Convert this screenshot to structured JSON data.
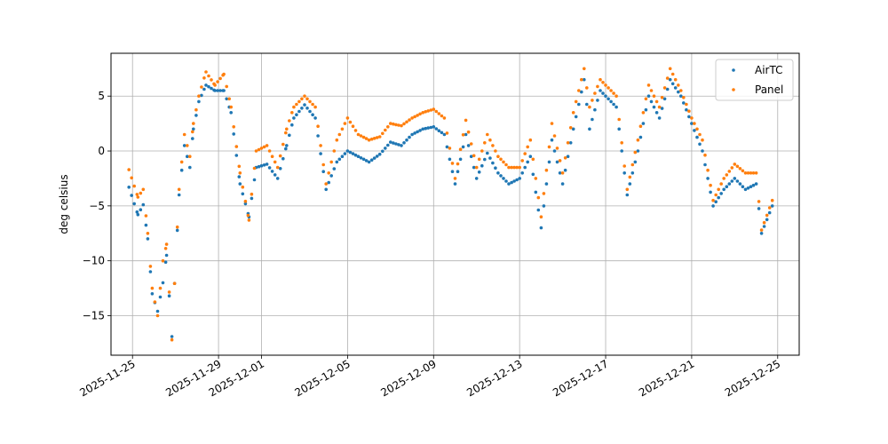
{
  "chart_data": {
    "type": "scatter",
    "title": "",
    "xlabel": "",
    "ylabel": "deg celsius",
    "x_type": "date",
    "xlim": [
      "2025-11-24T00:00",
      "2025-12-26T00:00"
    ],
    "ylim": [
      -18.6,
      8.9
    ],
    "x_ticks": [
      "2025-11-25",
      "2025-11-29",
      "2025-12-01",
      "2025-12-05",
      "2025-12-09",
      "2025-12-13",
      "2025-12-17",
      "2025-12-21",
      "2025-12-25"
    ],
    "y_ticks": [
      -15,
      -10,
      -5,
      0,
      5
    ],
    "grid": true,
    "legend_position": "top-right",
    "series": [
      {
        "name": "AirTC",
        "color": "#1f77b4",
        "points": [
          [
            "2025-11-24T20:00",
            -3.3
          ],
          [
            "2025-11-25T06:00",
            -5.8
          ],
          [
            "2025-11-25T12:00",
            -4.9
          ],
          [
            "2025-11-25T17:00",
            -8.0
          ],
          [
            "2025-11-25T22:00",
            -13.0
          ],
          [
            "2025-11-26T04:00",
            -14.6
          ],
          [
            "2025-11-26T10:00",
            -12.0
          ],
          [
            "2025-11-26T14:00",
            -9.5
          ],
          [
            "2025-11-26T20:00",
            -16.9
          ],
          [
            "2025-11-27T04:00",
            -4.0
          ],
          [
            "2025-11-27T10:00",
            0.5
          ],
          [
            "2025-11-27T16:00",
            -1.5
          ],
          [
            "2025-11-27T20:00",
            2.0
          ],
          [
            "2025-11-28T02:00",
            4.5
          ],
          [
            "2025-11-28T10:00",
            6.0
          ],
          [
            "2025-11-28T20:00",
            5.5
          ],
          [
            "2025-11-29T06:00",
            5.5
          ],
          [
            "2025-11-29T14:00",
            3.5
          ],
          [
            "2025-11-30T00:00",
            -3.0
          ],
          [
            "2025-11-30T10:00",
            -6.0
          ],
          [
            "2025-11-30T18:00",
            -1.5
          ],
          [
            "2025-12-01T06:00",
            -1.2
          ],
          [
            "2025-12-01T18:00",
            -2.5
          ],
          [
            "2025-12-02T04:00",
            0.5
          ],
          [
            "2025-12-02T12:00",
            3.0
          ],
          [
            "2025-12-03T00:00",
            4.2
          ],
          [
            "2025-12-03T12:00",
            3.0
          ],
          [
            "2025-12-04T00:00",
            -3.5
          ],
          [
            "2025-12-04T12:00",
            -1.0
          ],
          [
            "2025-12-05T00:00",
            0.0
          ],
          [
            "2025-12-05T12:00",
            -0.5
          ],
          [
            "2025-12-06T00:00",
            -1.0
          ],
          [
            "2025-12-06T12:00",
            -0.3
          ],
          [
            "2025-12-07T00:00",
            0.8
          ],
          [
            "2025-12-07T12:00",
            0.5
          ],
          [
            "2025-12-08T00:00",
            1.5
          ],
          [
            "2025-12-08T12:00",
            2.0
          ],
          [
            "2025-12-09T00:00",
            2.2
          ],
          [
            "2025-12-09T12:00",
            1.5
          ],
          [
            "2025-12-10T00:00",
            -3.0
          ],
          [
            "2025-12-10T12:00",
            1.5
          ],
          [
            "2025-12-11T00:00",
            -2.5
          ],
          [
            "2025-12-11T12:00",
            -0.2
          ],
          [
            "2025-12-12T00:00",
            -2.0
          ],
          [
            "2025-12-12T12:00",
            -3.0
          ],
          [
            "2025-12-13T00:00",
            -2.5
          ],
          [
            "2025-12-13T12:00",
            -0.5
          ],
          [
            "2025-12-14T00:00",
            -7.0
          ],
          [
            "2025-12-14T12:00",
            1.0
          ],
          [
            "2025-12-15T00:00",
            -3.0
          ],
          [
            "2025-12-15T12:00",
            2.0
          ],
          [
            "2025-12-16T00:00",
            6.5
          ],
          [
            "2025-12-16T06:00",
            2.0
          ],
          [
            "2025-12-16T18:00",
            5.5
          ],
          [
            "2025-12-17T12:00",
            4.0
          ],
          [
            "2025-12-18T00:00",
            -4.0
          ],
          [
            "2025-12-18T12:00",
            0.0
          ],
          [
            "2025-12-19T00:00",
            5.0
          ],
          [
            "2025-12-19T12:00",
            3.0
          ],
          [
            "2025-12-20T00:00",
            6.5
          ],
          [
            "2025-12-20T12:00",
            5.0
          ],
          [
            "2025-12-21T00:00",
            2.5
          ],
          [
            "2025-12-21T12:00",
            0.0
          ],
          [
            "2025-12-22T00:00",
            -5.0
          ],
          [
            "2025-12-22T12:00",
            -3.5
          ],
          [
            "2025-12-23T00:00",
            -2.5
          ],
          [
            "2025-12-23T12:00",
            -3.5
          ],
          [
            "2025-12-24T00:00",
            -3.0
          ],
          [
            "2025-12-24T06:00",
            -7.5
          ],
          [
            "2025-12-24T18:00",
            -5.0
          ]
        ]
      },
      {
        "name": "Panel",
        "color": "#ff7f0e",
        "points": [
          [
            "2025-11-24T20:00",
            -1.7
          ],
          [
            "2025-11-25T06:00",
            -4.2
          ],
          [
            "2025-11-25T12:00",
            -3.5
          ],
          [
            "2025-11-25T17:00",
            -7.5
          ],
          [
            "2025-11-25T22:00",
            -12.5
          ],
          [
            "2025-11-26T04:00",
            -15.0
          ],
          [
            "2025-11-26T10:00",
            -10.0
          ],
          [
            "2025-11-26T14:00",
            -8.5
          ],
          [
            "2025-11-26T20:00",
            -17.2
          ],
          [
            "2025-11-27T04:00",
            -3.5
          ],
          [
            "2025-11-27T10:00",
            1.5
          ],
          [
            "2025-11-27T16:00",
            -0.5
          ],
          [
            "2025-11-27T20:00",
            2.5
          ],
          [
            "2025-11-28T02:00",
            5.0
          ],
          [
            "2025-11-28T10:00",
            7.2
          ],
          [
            "2025-11-28T20:00",
            6.0
          ],
          [
            "2025-11-29T06:00",
            7.0
          ],
          [
            "2025-11-29T14:00",
            4.0
          ],
          [
            "2025-11-30T00:00",
            -2.0
          ],
          [
            "2025-11-30T10:00",
            -6.3
          ],
          [
            "2025-11-30T18:00",
            0.0
          ],
          [
            "2025-12-01T06:00",
            0.5
          ],
          [
            "2025-12-01T18:00",
            -1.5
          ],
          [
            "2025-12-02T04:00",
            2.0
          ],
          [
            "2025-12-02T12:00",
            4.0
          ],
          [
            "2025-12-03T00:00",
            5.0
          ],
          [
            "2025-12-03T12:00",
            4.0
          ],
          [
            "2025-12-04T00:00",
            -3.0
          ],
          [
            "2025-12-04T12:00",
            1.0
          ],
          [
            "2025-12-05T00:00",
            3.0
          ],
          [
            "2025-12-05T12:00",
            1.5
          ],
          [
            "2025-12-06T00:00",
            1.0
          ],
          [
            "2025-12-06T12:00",
            1.3
          ],
          [
            "2025-12-07T00:00",
            2.5
          ],
          [
            "2025-12-07T12:00",
            2.3
          ],
          [
            "2025-12-08T00:00",
            3.0
          ],
          [
            "2025-12-08T12:00",
            3.5
          ],
          [
            "2025-12-09T00:00",
            3.8
          ],
          [
            "2025-12-09T12:00",
            3.0
          ],
          [
            "2025-12-10T00:00",
            -2.5
          ],
          [
            "2025-12-10T12:00",
            2.8
          ],
          [
            "2025-12-11T00:00",
            -1.5
          ],
          [
            "2025-12-11T12:00",
            1.5
          ],
          [
            "2025-12-12T00:00",
            -0.5
          ],
          [
            "2025-12-12T12:00",
            -1.5
          ],
          [
            "2025-12-13T00:00",
            -1.5
          ],
          [
            "2025-12-13T12:00",
            1.0
          ],
          [
            "2025-12-14T00:00",
            -6.0
          ],
          [
            "2025-12-14T12:00",
            2.5
          ],
          [
            "2025-12-15T00:00",
            -2.0
          ],
          [
            "2025-12-15T12:00",
            3.5
          ],
          [
            "2025-12-16T00:00",
            7.5
          ],
          [
            "2025-12-16T06:00",
            4.0
          ],
          [
            "2025-12-16T18:00",
            6.5
          ],
          [
            "2025-12-17T12:00",
            5.0
          ],
          [
            "2025-12-18T00:00",
            -3.5
          ],
          [
            "2025-12-18T12:00",
            1.0
          ],
          [
            "2025-12-19T00:00",
            6.0
          ],
          [
            "2025-12-19T12:00",
            4.0
          ],
          [
            "2025-12-20T00:00",
            7.5
          ],
          [
            "2025-12-20T12:00",
            5.5
          ],
          [
            "2025-12-21T00:00",
            3.0
          ],
          [
            "2025-12-21T12:00",
            1.0
          ],
          [
            "2025-12-22T00:00",
            -4.5
          ],
          [
            "2025-12-22T12:00",
            -2.5
          ],
          [
            "2025-12-23T00:00",
            -1.2
          ],
          [
            "2025-12-23T12:00",
            -2.0
          ],
          [
            "2025-12-24T00:00",
            -2.0
          ],
          [
            "2025-12-24T06:00",
            -7.2
          ],
          [
            "2025-12-24T18:00",
            -4.5
          ]
        ]
      }
    ]
  }
}
